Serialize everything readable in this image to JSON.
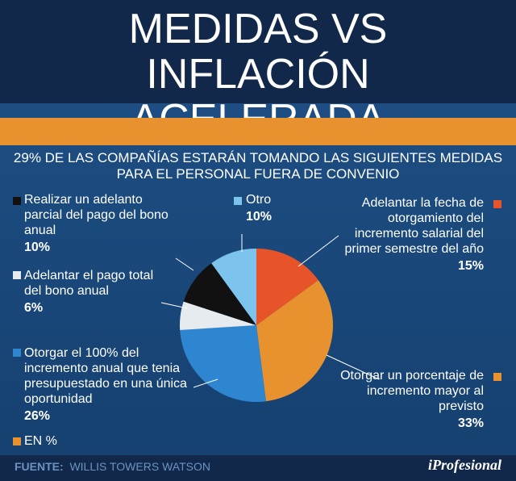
{
  "chart_data": {
    "type": "pie",
    "title": "MEDIDAS VS INFLACIÓN ACELERADA",
    "subtitle": "29% DE LAS COMPAÑÍAS ESTARÁN TOMANDO LAS SIGUIENTES MEDIDAS PARA EL PERSONAL FUERA DE CONVENIO",
    "categories": [
      "Adelantar la fecha de otorgamiento del incremento salarial del primer semestre del año",
      "Otorgar un porcentaje de incremento mayor al previsto",
      "Otorgar el 100% del incremento anual que tenia presupuestado en una única oportunidad",
      "Adelantar el pago total del bono anual",
      "Realizar un adelanto parcial del pago del bono anual",
      "Otro"
    ],
    "values": [
      15,
      33,
      26,
      6,
      10,
      10
    ],
    "value_labels": [
      "15%",
      "33%",
      "26%",
      "6%",
      "10%",
      "10%"
    ],
    "colors": [
      "#e8542a",
      "#e8912f",
      "#2e86d0",
      "#e6ebf0",
      "#111111",
      "#7cc4ee"
    ],
    "legend_note": "EN %"
  },
  "source_label": "FUENTE:",
  "source": "WILLIS TOWERS WATSON",
  "logo": "iProfesional"
}
